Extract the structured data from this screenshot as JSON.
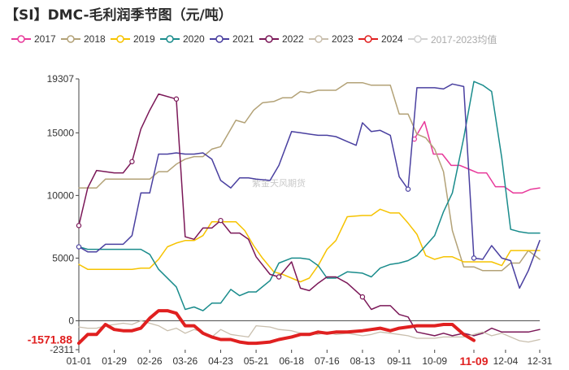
{
  "chart_data": {
    "type": "line",
    "title": "【SI】DMC-毛利润季节图（元/吨）",
    "watermark": "紫金天风期货",
    "x_ticks": [
      "01-01",
      "01-29",
      "02-26",
      "03-26",
      "04-23",
      "05-21",
      "06-18",
      "07-16",
      "08-13",
      "09-11",
      "10-09",
      "11-09",
      "12-04",
      "12-31"
    ],
    "y_ticks": [
      19307,
      15000,
      10000,
      5000,
      0,
      -2311
    ],
    "ylim": [
      -2311,
      19307
    ],
    "grid": false,
    "legend_position": "top",
    "current_value_label": "-1571.88",
    "current_date_label": "11-09",
    "highlight_color": "#e02020",
    "series": [
      {
        "name": "2017",
        "color": "#e8399a",
        "width": 1.5,
        "marker": "circle",
        "markers": [
          0
        ],
        "x": [
          "09-23",
          "10-01",
          "10-08",
          "10-15",
          "10-22",
          "10-29",
          "11-05",
          "11-12",
          "11-19",
          "11-26",
          "12-03",
          "12-10",
          "12-17",
          "12-24",
          "12-31"
        ],
        "y": [
          14500,
          15900,
          13300,
          13300,
          12400,
          12400,
          12100,
          11800,
          11800,
          10700,
          10700,
          10200,
          10200,
          10500,
          10600
        ]
      },
      {
        "name": "2018",
        "color": "#b3a277",
        "width": 1.5,
        "marker": "none",
        "x": [
          "01-01",
          "01-08",
          "01-15",
          "01-22",
          "02-05",
          "02-26",
          "03-05",
          "03-12",
          "03-19",
          "03-26",
          "04-02",
          "04-09",
          "04-16",
          "04-23",
          "05-05",
          "05-12",
          "05-19",
          "05-26",
          "06-04",
          "06-11",
          "06-18",
          "06-25",
          "07-02",
          "07-09",
          "07-16",
          "07-23",
          "08-01",
          "08-13",
          "08-20",
          "08-27",
          "09-04",
          "09-11",
          "09-18",
          "09-25",
          "10-02",
          "10-09",
          "10-16",
          "10-23",
          "11-01",
          "11-09",
          "11-16",
          "11-23",
          "12-01",
          "12-08",
          "12-15",
          "12-22",
          "12-31"
        ],
        "y": [
          10600,
          10600,
          10600,
          11300,
          11300,
          11300,
          11900,
          11900,
          12500,
          12900,
          13100,
          13100,
          13700,
          13900,
          16000,
          15800,
          16800,
          17400,
          17500,
          17800,
          17800,
          18300,
          18200,
          18400,
          18400,
          18400,
          19000,
          19000,
          18800,
          18800,
          18800,
          16500,
          16500,
          14900,
          14600,
          13700,
          11900,
          7200,
          4300,
          4300,
          4000,
          4000,
          4000,
          4600,
          4600,
          5600,
          4900
        ]
      },
      {
        "name": "2019",
        "color": "#f6c300",
        "width": 1.5,
        "marker": "none",
        "x": [
          "01-01",
          "01-08",
          "01-15",
          "02-12",
          "02-19",
          "02-26",
          "03-05",
          "03-12",
          "03-19",
          "03-26",
          "04-02",
          "04-09",
          "04-16",
          "04-23",
          "05-05",
          "05-12",
          "05-19",
          "05-26",
          "06-04",
          "06-11",
          "06-18",
          "06-25",
          "07-02",
          "07-09",
          "07-16",
          "07-23",
          "08-01",
          "08-13",
          "08-20",
          "08-27",
          "09-04",
          "09-11",
          "09-18",
          "09-25",
          "10-02",
          "10-09",
          "10-16",
          "10-23",
          "11-01",
          "11-09",
          "11-16",
          "11-23",
          "12-01",
          "12-08",
          "12-15",
          "12-22",
          "12-31"
        ],
        "y": [
          4500,
          4100,
          4100,
          4100,
          4200,
          4200,
          4900,
          5900,
          6200,
          6400,
          6400,
          6800,
          7900,
          7900,
          7900,
          7200,
          6000,
          5000,
          3900,
          3700,
          3400,
          3100,
          3400,
          4400,
          5700,
          6400,
          8300,
          8400,
          8400,
          8900,
          8600,
          8600,
          7800,
          6900,
          5200,
          4900,
          5100,
          5100,
          4700,
          4700,
          4700,
          4700,
          4400,
          5600,
          5600,
          5600,
          5600
        ]
      },
      {
        "name": "2020",
        "color": "#1a8c8c",
        "width": 1.5,
        "marker": "none",
        "x": [
          "01-01",
          "01-08",
          "01-15",
          "02-19",
          "02-26",
          "03-05",
          "03-19",
          "03-26",
          "04-02",
          "04-09",
          "04-16",
          "04-23",
          "05-01",
          "05-08",
          "05-15",
          "05-21",
          "06-01",
          "06-08",
          "06-18",
          "06-25",
          "07-02",
          "07-09",
          "07-16",
          "07-23",
          "08-01",
          "08-13",
          "08-20",
          "08-27",
          "09-04",
          "09-11",
          "09-18",
          "09-25",
          "10-09",
          "10-16",
          "10-23",
          "11-01",
          "11-09",
          "11-16",
          "11-23",
          "12-01",
          "12-08",
          "12-15",
          "12-22",
          "12-31"
        ],
        "y": [
          5900,
          5700,
          5700,
          5700,
          5300,
          4100,
          2700,
          900,
          1100,
          800,
          1400,
          1400,
          2500,
          2000,
          2300,
          2300,
          3200,
          4600,
          5000,
          5000,
          4900,
          4400,
          3400,
          3400,
          3900,
          3800,
          3500,
          4200,
          4500,
          4600,
          4800,
          5200,
          6800,
          8700,
          10200,
          14600,
          19100,
          18800,
          18300,
          13000,
          7300,
          7100,
          7000,
          7000
        ]
      },
      {
        "name": "2021",
        "color": "#4a40a0",
        "width": 1.5,
        "marker": "circle",
        "markers": [
          0,
          36,
          43
        ],
        "x": [
          "01-01",
          "01-08",
          "01-15",
          "01-22",
          "01-29",
          "02-05",
          "02-12",
          "02-19",
          "02-26",
          "03-05",
          "03-12",
          "03-19",
          "03-26",
          "04-02",
          "04-09",
          "04-16",
          "04-23",
          "05-01",
          "05-08",
          "05-15",
          "05-21",
          "06-01",
          "06-08",
          "06-18",
          "06-25",
          "07-02",
          "07-09",
          "07-16",
          "07-23",
          "08-01",
          "08-08",
          "08-13",
          "08-20",
          "08-27",
          "09-04",
          "09-11",
          "09-18",
          "09-25",
          "10-02",
          "10-09",
          "10-16",
          "10-23",
          "11-01",
          "11-09",
          "11-16",
          "11-23",
          "12-01",
          "12-08",
          "12-15",
          "12-22",
          "12-31"
        ],
        "y": [
          5900,
          5500,
          5500,
          6100,
          6100,
          6100,
          6800,
          10200,
          10200,
          13300,
          13300,
          13400,
          13300,
          13300,
          13400,
          12900,
          11200,
          10600,
          11400,
          11400,
          11300,
          11200,
          12400,
          15100,
          15000,
          14900,
          14800,
          14800,
          14700,
          14300,
          14000,
          15800,
          15100,
          15200,
          14800,
          11500,
          10500,
          18600,
          18600,
          18600,
          18500,
          18900,
          18700,
          5000,
          4900,
          6000,
          5000,
          4800,
          2600,
          4000,
          6400
        ]
      },
      {
        "name": "2022",
        "color": "#7b1858",
        "width": 1.5,
        "marker": "circle",
        "markers": [
          0,
          6,
          10,
          15,
          21,
          29
        ],
        "x": [
          "01-01",
          "01-08",
          "01-15",
          "01-22",
          "01-29",
          "02-05",
          "02-12",
          "02-19",
          "02-26",
          "03-05",
          "03-19",
          "03-26",
          "04-02",
          "04-09",
          "04-16",
          "04-23",
          "05-01",
          "05-08",
          "05-15",
          "05-21",
          "06-01",
          "06-08",
          "06-18",
          "06-25",
          "07-02",
          "07-09",
          "07-16",
          "07-23",
          "08-01",
          "08-13",
          "08-20",
          "08-27",
          "09-04",
          "09-11",
          "09-18",
          "09-25",
          "10-09",
          "10-16",
          "10-23",
          "11-01",
          "11-09",
          "11-16",
          "11-23",
          "12-01",
          "12-08",
          "12-15",
          "12-22",
          "12-31"
        ],
        "y": [
          7600,
          10600,
          12000,
          11900,
          11800,
          11800,
          12700,
          15300,
          16800,
          18100,
          17700,
          6700,
          6500,
          7400,
          7400,
          8000,
          7000,
          7000,
          6500,
          5100,
          3700,
          3500,
          4700,
          2600,
          2400,
          3000,
          3500,
          3500,
          3000,
          1900,
          900,
          1200,
          1200,
          500,
          300,
          -900,
          -1200,
          -1000,
          -1200,
          -1000,
          -1200,
          -1000,
          -600,
          -900,
          -900,
          -900,
          -900,
          -700
        ]
      },
      {
        "name": "2023",
        "color": "#c9bfae",
        "width": 1.3,
        "marker": "none",
        "x": [
          "01-01",
          "01-08",
          "01-15",
          "01-22",
          "02-05",
          "02-12",
          "02-19",
          "02-26",
          "03-05",
          "03-12",
          "03-19",
          "03-26",
          "04-02",
          "04-09",
          "04-16",
          "04-23",
          "05-01",
          "05-08",
          "05-15",
          "05-21",
          "06-01",
          "06-08",
          "06-18",
          "06-25",
          "07-02",
          "07-09",
          "07-16",
          "07-23",
          "08-01",
          "08-13",
          "08-20",
          "08-27",
          "09-04",
          "09-11",
          "09-18",
          "09-25",
          "10-09",
          "10-16",
          "10-23",
          "11-01",
          "11-09",
          "11-16",
          "11-23",
          "12-01",
          "12-08",
          "12-15",
          "12-22",
          "12-31"
        ],
        "y": [
          -500,
          -600,
          -600,
          -400,
          -200,
          -300,
          0,
          -200,
          -400,
          -800,
          -600,
          -1000,
          -700,
          -900,
          -1300,
          -700,
          -1100,
          -1200,
          -1300,
          -400,
          -500,
          -700,
          -800,
          -1000,
          -1000,
          -1100,
          -900,
          -1100,
          -1000,
          -1200,
          -1100,
          -900,
          -1000,
          -1100,
          -1200,
          -1400,
          -1400,
          -1300,
          -1300,
          -1300,
          -1100,
          -900,
          -1200,
          -1000,
          -1300,
          -1600,
          -1700,
          -1500
        ]
      },
      {
        "name": "2024",
        "color": "#e02020",
        "width": 4,
        "marker": "none",
        "x": [
          "01-01",
          "01-08",
          "01-15",
          "01-22",
          "01-29",
          "02-05",
          "02-12",
          "02-19",
          "02-26",
          "03-05",
          "03-12",
          "03-19",
          "03-26",
          "04-02",
          "04-09",
          "04-16",
          "04-23",
          "05-01",
          "05-08",
          "05-15",
          "05-21",
          "06-01",
          "06-08",
          "06-18",
          "06-25",
          "07-02",
          "07-09",
          "07-16",
          "07-23",
          "08-01",
          "08-13",
          "08-20",
          "08-27",
          "09-04",
          "09-11",
          "09-18",
          "09-25",
          "10-02",
          "10-09",
          "10-16",
          "10-23",
          "11-01",
          "11-09"
        ],
        "y": [
          -1800,
          -1100,
          -1100,
          -300,
          -700,
          -800,
          -800,
          -600,
          200,
          800,
          800,
          600,
          -400,
          -400,
          -1000,
          -1300,
          -1500,
          -1500,
          -1700,
          -1800,
          -1800,
          -1700,
          -1500,
          -1300,
          -1100,
          -1100,
          -900,
          -1000,
          -900,
          -900,
          -800,
          -700,
          -600,
          -800,
          -600,
          -500,
          -400,
          -400,
          -400,
          -300,
          -300,
          -1100,
          -1571.88
        ]
      },
      {
        "name": "2017-2023均值",
        "color": "#d2d2d2",
        "width": 1.3,
        "marker": "none",
        "x": [],
        "y": []
      }
    ]
  }
}
